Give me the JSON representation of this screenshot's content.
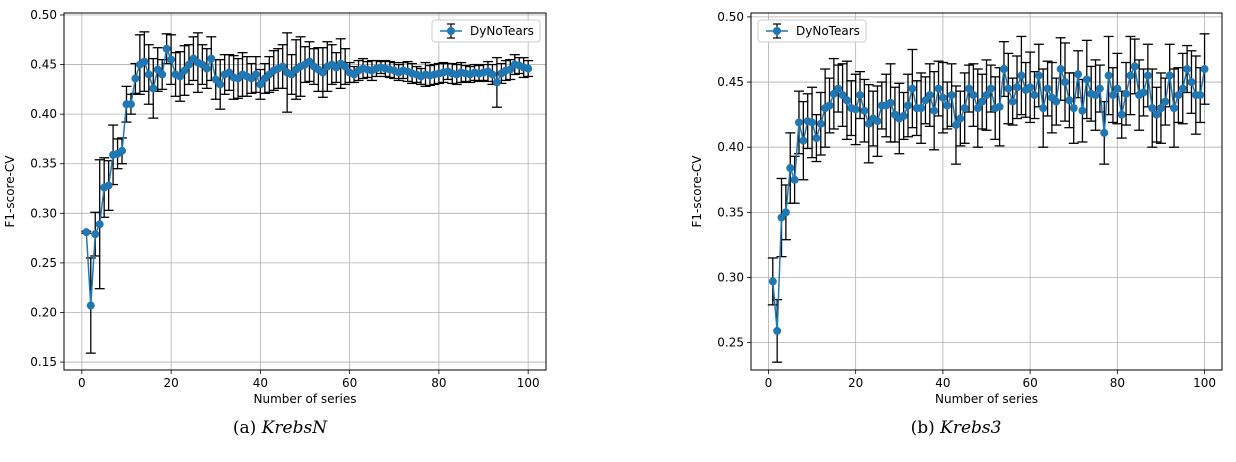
{
  "chart_data": [
    {
      "type": "line",
      "caption_prefix": "(a)",
      "caption_title": "KrebsN",
      "xlabel": "Number of series",
      "ylabel": "F1-score-CV",
      "xlim": [
        -4,
        104
      ],
      "ylim": [
        0.142,
        0.502
      ],
      "xticks": [
        0,
        20,
        40,
        60,
        80,
        100
      ],
      "yticks": [
        0.15,
        0.2,
        0.25,
        0.3,
        0.35,
        0.4,
        0.45,
        0.5
      ],
      "grid": true,
      "legend_placement": "top-right",
      "color": "#1f77b4",
      "series": [
        {
          "name": "DyNoTears",
          "x": [
            1,
            2,
            3,
            4,
            5,
            6,
            7,
            8,
            9,
            10,
            11,
            12,
            13,
            14,
            15,
            16,
            17,
            18,
            19,
            20,
            21,
            22,
            23,
            24,
            25,
            26,
            27,
            28,
            29,
            30,
            31,
            32,
            33,
            34,
            35,
            36,
            37,
            38,
            39,
            40,
            41,
            42,
            43,
            44,
            45,
            46,
            47,
            48,
            49,
            50,
            51,
            52,
            53,
            54,
            55,
            56,
            57,
            58,
            59,
            60,
            61,
            62,
            63,
            64,
            65,
            66,
            67,
            68,
            69,
            70,
            71,
            72,
            73,
            74,
            75,
            76,
            77,
            78,
            79,
            80,
            81,
            82,
            83,
            84,
            85,
            86,
            87,
            88,
            89,
            90,
            91,
            92,
            93,
            94,
            95,
            96,
            97,
            98,
            99,
            100
          ],
          "values": [
            0.281,
            0.207,
            0.279,
            0.289,
            0.326,
            0.328,
            0.359,
            0.36,
            0.363,
            0.41,
            0.41,
            0.436,
            0.45,
            0.453,
            0.44,
            0.426,
            0.445,
            0.44,
            0.466,
            0.455,
            0.44,
            0.438,
            0.444,
            0.45,
            0.456,
            0.452,
            0.45,
            0.446,
            0.456,
            0.435,
            0.43,
            0.44,
            0.442,
            0.437,
            0.436,
            0.44,
            0.438,
            0.436,
            0.44,
            0.43,
            0.436,
            0.44,
            0.444,
            0.446,
            0.448,
            0.442,
            0.44,
            0.445,
            0.448,
            0.45,
            0.453,
            0.448,
            0.445,
            0.442,
            0.448,
            0.45,
            0.447,
            0.451,
            0.448,
            0.442,
            0.44,
            0.444,
            0.446,
            0.445,
            0.444,
            0.446,
            0.447,
            0.446,
            0.445,
            0.444,
            0.442,
            0.444,
            0.443,
            0.441,
            0.44,
            0.438,
            0.44,
            0.439,
            0.44,
            0.441,
            0.442,
            0.443,
            0.441,
            0.44,
            0.442,
            0.441,
            0.44,
            0.442,
            0.441,
            0.442,
            0.443,
            0.44,
            0.432,
            0.441,
            0.444,
            0.445,
            0.45,
            0.449,
            0.447,
            0.446
          ],
          "errors": [
            0.001,
            0.048,
            0.022,
            0.065,
            0.03,
            0.025,
            0.03,
            0.015,
            0.013,
            0.018,
            0.01,
            0.015,
            0.03,
            0.03,
            0.03,
            0.03,
            0.022,
            0.015,
            0.015,
            0.025,
            0.022,
            0.025,
            0.025,
            0.02,
            0.022,
            0.03,
            0.02,
            0.02,
            0.022,
            0.02,
            0.025,
            0.02,
            0.018,
            0.022,
            0.02,
            0.022,
            0.02,
            0.015,
            0.018,
            0.015,
            0.015,
            0.018,
            0.02,
            0.02,
            0.022,
            0.04,
            0.02,
            0.03,
            0.03,
            0.018,
            0.02,
            0.018,
            0.022,
            0.025,
            0.025,
            0.02,
            0.015,
            0.025,
            0.018,
            0.01,
            0.008,
            0.01,
            0.01,
            0.008,
            0.01,
            0.008,
            0.006,
            0.008,
            0.008,
            0.008,
            0.008,
            0.008,
            0.01,
            0.01,
            0.008,
            0.008,
            0.012,
            0.01,
            0.01,
            0.01,
            0.01,
            0.008,
            0.01,
            0.01,
            0.01,
            0.008,
            0.008,
            0.008,
            0.008,
            0.008,
            0.01,
            0.01,
            0.025,
            0.01,
            0.01,
            0.01,
            0.01,
            0.008,
            0.01,
            0.008
          ]
        }
      ]
    },
    {
      "type": "line",
      "caption_prefix": "(b)",
      "caption_title": "Krebs3",
      "xlabel": "Number of series",
      "ylabel": "F1-score-CV",
      "xlim": [
        -4,
        104
      ],
      "ylim": [
        0.229,
        0.503
      ],
      "xticks": [
        0,
        20,
        40,
        60,
        80,
        100
      ],
      "yticks": [
        0.25,
        0.3,
        0.35,
        0.4,
        0.45,
        0.5
      ],
      "grid": true,
      "legend_placement": "top-left",
      "color": "#1f77b4",
      "series": [
        {
          "name": "DyNoTears",
          "x": [
            1,
            2,
            3,
            4,
            5,
            6,
            7,
            8,
            9,
            10,
            11,
            12,
            13,
            14,
            15,
            16,
            17,
            18,
            19,
            20,
            21,
            22,
            23,
            24,
            25,
            26,
            27,
            28,
            29,
            30,
            31,
            32,
            33,
            34,
            35,
            36,
            37,
            38,
            39,
            40,
            41,
            42,
            43,
            44,
            45,
            46,
            47,
            48,
            49,
            50,
            51,
            52,
            53,
            54,
            55,
            56,
            57,
            58,
            59,
            60,
            61,
            62,
            63,
            64,
            65,
            66,
            67,
            68,
            69,
            70,
            71,
            72,
            73,
            74,
            75,
            76,
            77,
            78,
            79,
            80,
            81,
            82,
            83,
            84,
            85,
            86,
            87,
            88,
            89,
            90,
            91,
            92,
            93,
            94,
            95,
            96,
            97,
            98,
            99,
            100
          ],
          "values": [
            0.297,
            0.259,
            0.346,
            0.35,
            0.384,
            0.375,
            0.419,
            0.405,
            0.42,
            0.419,
            0.407,
            0.418,
            0.43,
            0.432,
            0.441,
            0.445,
            0.44,
            0.436,
            0.43,
            0.429,
            0.44,
            0.428,
            0.418,
            0.422,
            0.42,
            0.432,
            0.432,
            0.434,
            0.425,
            0.422,
            0.424,
            0.432,
            0.445,
            0.43,
            0.43,
            0.436,
            0.44,
            0.428,
            0.445,
            0.438,
            0.432,
            0.44,
            0.417,
            0.422,
            0.43,
            0.445,
            0.44,
            0.43,
            0.435,
            0.44,
            0.445,
            0.43,
            0.431,
            0.46,
            0.445,
            0.435,
            0.446,
            0.455,
            0.444,
            0.446,
            0.44,
            0.455,
            0.43,
            0.445,
            0.438,
            0.435,
            0.46,
            0.45,
            0.436,
            0.43,
            0.456,
            0.428,
            0.452,
            0.441,
            0.44,
            0.445,
            0.411,
            0.455,
            0.44,
            0.445,
            0.425,
            0.441,
            0.455,
            0.462,
            0.44,
            0.442,
            0.455,
            0.43,
            0.425,
            0.43,
            0.435,
            0.455,
            0.43,
            0.44,
            0.445,
            0.46,
            0.45,
            0.44,
            0.44,
            0.46
          ]
        }
      ]
    }
  ]
}
